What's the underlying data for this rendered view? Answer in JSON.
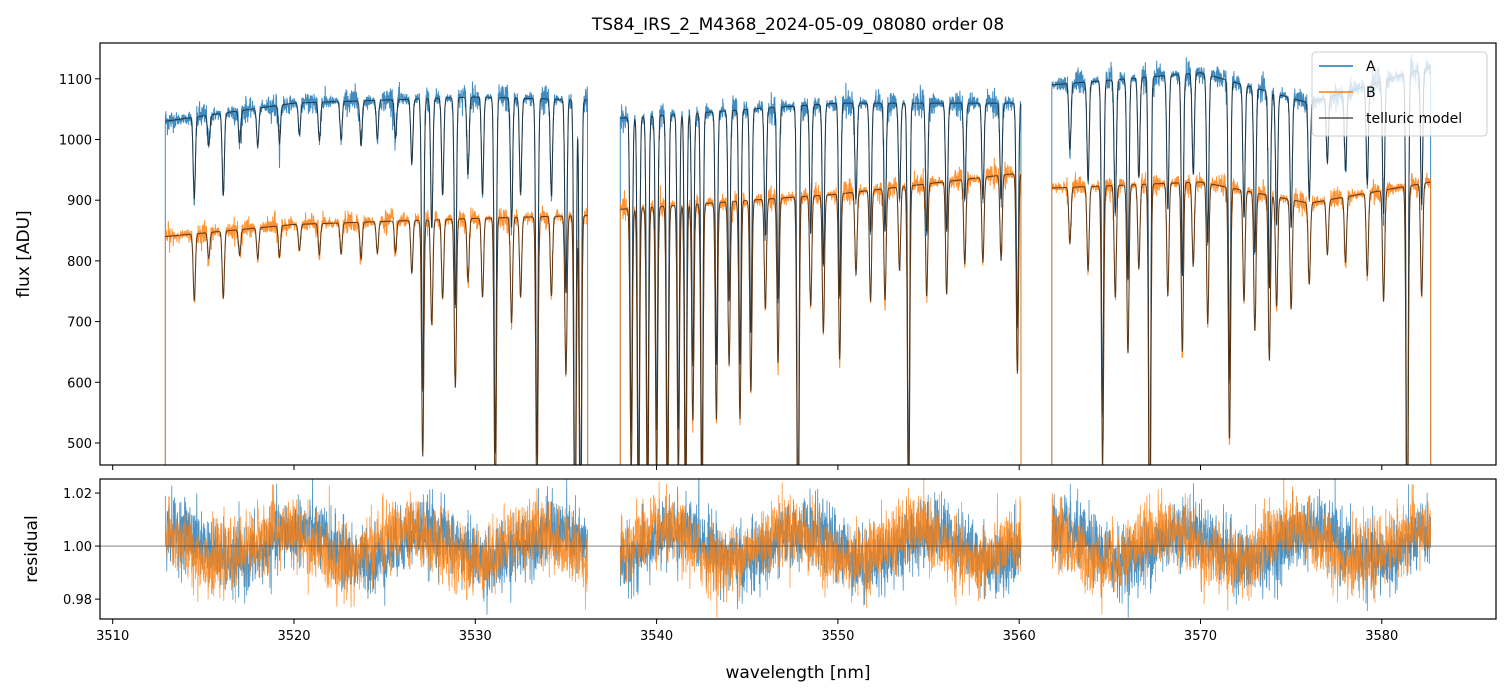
{
  "chart_data": [
    {
      "type": "line",
      "title": "TS84_IRS_2_M4368_2024-05-09_08080  order 08",
      "xlabel": "",
      "ylabel": "flux [ADU]",
      "xlim": [
        3509.3,
        3586.3
      ],
      "ylim": [
        463.7,
        1159
      ],
      "yticks": [
        500,
        600,
        700,
        800,
        900,
        1000,
        1100
      ],
      "xticks": [
        3510,
        3520,
        3530,
        3540,
        3550,
        3560,
        3570,
        3580
      ],
      "legend": {
        "placement": "top-right",
        "entries": [
          "A",
          "B",
          "telluric model"
        ]
      },
      "segments": [
        [
          3512.9,
          3536.2
        ],
        [
          3538.0,
          3560.1
        ],
        [
          3561.8,
          3582.7
        ]
      ],
      "series": [
        {
          "name": "A",
          "color": "#1f77b4",
          "continuum": [
            [
              3512.9,
              1030
            ],
            [
              3520,
              1060
            ],
            [
              3530,
              1070
            ],
            [
              3536.2,
              1065
            ],
            [
              3538,
              1035
            ],
            [
              3550,
              1060
            ],
            [
              3560.1,
              1060
            ],
            [
              3561.8,
              1090
            ],
            [
              3570,
              1110
            ],
            [
              3576,
              1060
            ],
            [
              3582.7,
              1120
            ]
          ],
          "noise": 8
        },
        {
          "name": "B",
          "color": "#ff7f0e",
          "continuum": [
            [
              3512.9,
              840
            ],
            [
              3520,
              860
            ],
            [
              3530,
              870
            ],
            [
              3536.2,
              875
            ],
            [
              3538,
              885
            ],
            [
              3550,
              910
            ],
            [
              3560.1,
              945
            ],
            [
              3561.8,
              920
            ],
            [
              3570,
              930
            ],
            [
              3576,
              895
            ],
            [
              3582.7,
              930
            ]
          ],
          "noise": 7
        },
        {
          "name": "telluric model",
          "color": "#3a3a3a"
        }
      ],
      "absorption_lines": [
        [
          3514.5,
          0.13
        ],
        [
          3515.3,
          0.05
        ],
        [
          3516.1,
          0.13
        ],
        [
          3517.0,
          0.05
        ],
        [
          3518.0,
          0.06
        ],
        [
          3519.2,
          0.06
        ],
        [
          3520.3,
          0.05
        ],
        [
          3521.4,
          0.06
        ],
        [
          3522.6,
          0.06
        ],
        [
          3523.7,
          0.07
        ],
        [
          3524.6,
          0.06
        ],
        [
          3525.6,
          0.06
        ],
        [
          3526.5,
          0.1
        ],
        [
          3527.1,
          0.45
        ],
        [
          3527.6,
          0.2
        ],
        [
          3528.2,
          0.15
        ],
        [
          3528.9,
          0.32
        ],
        [
          3529.6,
          0.12
        ],
        [
          3530.4,
          0.15
        ],
        [
          3531.1,
          0.55
        ],
        [
          3532.0,
          0.2
        ],
        [
          3532.5,
          0.15
        ],
        [
          3533.4,
          0.55
        ],
        [
          3534.2,
          0.15
        ],
        [
          3535.0,
          0.3
        ],
        [
          3535.5,
          0.7
        ],
        [
          3535.8,
          0.7
        ],
        [
          3538.6,
          0.5
        ],
        [
          3539.0,
          0.6
        ],
        [
          3539.5,
          0.6
        ],
        [
          3540.0,
          0.5
        ],
        [
          3540.6,
          0.6
        ],
        [
          3541.2,
          0.5
        ],
        [
          3541.6,
          0.6
        ],
        [
          3542.0,
          0.4
        ],
        [
          3542.5,
          0.6
        ],
        [
          3543.3,
          0.4
        ],
        [
          3544.0,
          0.3
        ],
        [
          3544.6,
          0.4
        ],
        [
          3545.2,
          0.35
        ],
        [
          3546.0,
          0.2
        ],
        [
          3546.7,
          0.3
        ],
        [
          3547.8,
          0.7
        ],
        [
          3548.5,
          0.2
        ],
        [
          3549.2,
          0.25
        ],
        [
          3550.1,
          0.3
        ],
        [
          3551.0,
          0.15
        ],
        [
          3551.8,
          0.2
        ],
        [
          3552.6,
          0.2
        ],
        [
          3553.4,
          0.15
        ],
        [
          3553.9,
          0.6
        ],
        [
          3554.9,
          0.2
        ],
        [
          3556.0,
          0.2
        ],
        [
          3557.0,
          0.15
        ],
        [
          3558.0,
          0.15
        ],
        [
          3559.0,
          0.15
        ],
        [
          3559.9,
          0.35
        ],
        [
          3562.8,
          0.1
        ],
        [
          3563.8,
          0.15
        ],
        [
          3564.6,
          0.5
        ],
        [
          3565.3,
          0.2
        ],
        [
          3566.0,
          0.3
        ],
        [
          3566.6,
          0.15
        ],
        [
          3567.2,
          0.7
        ],
        [
          3568.2,
          0.2
        ],
        [
          3569.0,
          0.3
        ],
        [
          3569.6,
          0.15
        ],
        [
          3570.4,
          0.25
        ],
        [
          3571.6,
          0.45
        ],
        [
          3572.4,
          0.2
        ],
        [
          3573.0,
          0.25
        ],
        [
          3573.8,
          0.3
        ],
        [
          3574.2,
          0.2
        ],
        [
          3575.0,
          0.2
        ],
        [
          3576.0,
          0.15
        ],
        [
          3577.0,
          0.1
        ],
        [
          3578.0,
          0.12
        ],
        [
          3579.2,
          0.15
        ],
        [
          3580.1,
          0.2
        ],
        [
          3581.4,
          0.7
        ],
        [
          3582.2,
          0.2
        ]
      ],
      "line_width_nm": 0.06
    },
    {
      "type": "line",
      "xlabel": "wavelength [nm]",
      "ylabel": "residual",
      "xlim": [
        3509.3,
        3586.3
      ],
      "ylim": [
        0.9725,
        1.0253
      ],
      "yticks": [
        "0.98",
        "1.00",
        "1.02"
      ],
      "xticks": [
        "3510",
        "3520",
        "3530",
        "3540",
        "3550",
        "3560",
        "3570",
        "3580"
      ],
      "reference_line": 1.0,
      "series": [
        {
          "name": "A",
          "color": "#1f77b4",
          "mean": 1.0,
          "sigma": 0.008
        },
        {
          "name": "B",
          "color": "#ff7f0e",
          "mean": 1.0,
          "sigma": 0.008
        }
      ]
    }
  ]
}
